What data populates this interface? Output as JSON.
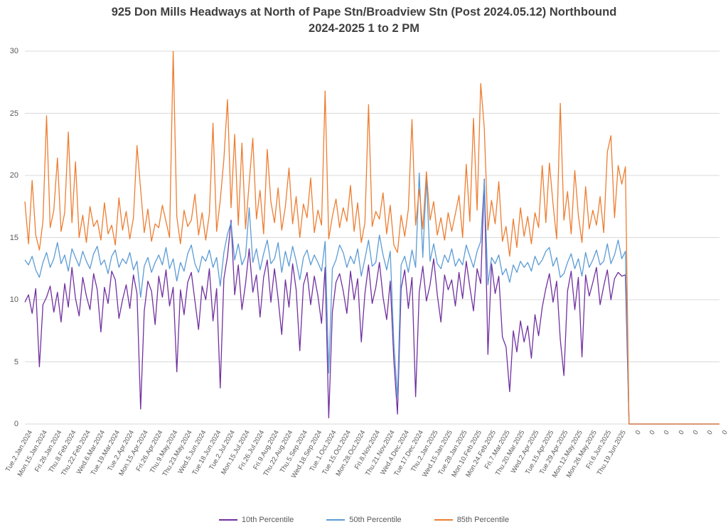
{
  "chart_data": {
    "type": "line",
    "title": "925 Don Mills Headways at North of Pape Stn/Broadview Stn (Post 2024.05.12) Northbound",
    "subtitle": "2024-2025 1 to 2 PM",
    "ylim": [
      0,
      30
    ],
    "yticks": [
      0,
      5,
      10,
      15,
      20,
      25,
      30
    ],
    "grid": "horizontal",
    "legend_position": "bottom",
    "tick_interval": 4,
    "x_tick_labels": [
      "Tue.2.Jan.2024",
      "Mon.15.Jan.2024",
      "Fri.26.Jan.2024",
      "Thu.8.Feb.2024",
      "Thu.22.Feb.2024",
      "Wed.6.Mar.2024",
      "Tue.19.Mar.2024",
      "Tue.2.Apr.2024",
      "Mon.15.Apr.2024",
      "Fri.26.Apr.2024",
      "Thu.9.May.2024",
      "Thu.23.May.2024",
      "Wed.5.Jun.2024",
      "Tue.18.Jun.2024",
      "Tue.2.Jul.2024",
      "Mon.15.Jul.2024",
      "Fri.26.Jul.2024",
      "Fri.9.Aug.2024",
      "Thu.22.Aug.2024",
      "Thu.5.Sep.2024",
      "Wed.18.Sep.2024",
      "Tue.1.Oct.2024",
      "Tue.15.Oct.2024",
      "Mon.28.Oct.2024",
      "Fri.8.Nov.2024",
      "Thu.21.Nov.2024",
      "Wed.4.Dec.2024",
      "Tue.17.Dec.2024",
      "Thu.2.Jan.2025",
      "Wed.15.Jan.2025",
      "Tue.28.Jan.2025",
      "Mon.10.Feb.2025",
      "Mon.24.Feb.2025",
      "Fri.7.Mar.2025",
      "Thu.20.Mar.2025",
      "Wed.2.Apr.2025",
      "Tue.15.Apr.2025",
      "Tue.29.Apr.2025",
      "Mon.12.May.2025",
      "Mon.26.May.2025",
      "Fri.6.Jun.2025",
      "Thu.19.Jun.2025",
      "0",
      "0",
      "0",
      "0",
      "0",
      "0",
      "0"
    ],
    "series": [
      {
        "name": "10th Percentile",
        "color": "#7030A0",
        "values": [
          9.8,
          10.4,
          8.9,
          10.9,
          4.6,
          9.6,
          10.2,
          11.1,
          9.0,
          10.6,
          8.2,
          11.3,
          9.4,
          12.6,
          10.1,
          8.7,
          11.8,
          10.3,
          9.2,
          12.1,
          10.8,
          7.4,
          11.0,
          9.7,
          12.3,
          11.6,
          8.5,
          10.0,
          11.2,
          9.3,
          12.0,
          10.5,
          1.2,
          9.1,
          11.5,
          10.7,
          8.0,
          11.9,
          10.2,
          12.4,
          9.5,
          11.0,
          4.2,
          10.8,
          8.8,
          11.4,
          12.2,
          9.9,
          7.6,
          11.1,
          10.0,
          12.5,
          8.3,
          10.9,
          2.9,
          11.7,
          13.5,
          16.4,
          10.4,
          12.8,
          9.2,
          11.3,
          14.1,
          10.6,
          12.0,
          8.6,
          11.8,
          13.2,
          9.8,
          12.5,
          10.1,
          7.2,
          11.6,
          9.4,
          12.9,
          10.8,
          5.9,
          11.2,
          12.2,
          9.6,
          11.9,
          10.3,
          8.1,
          12.6,
          0.5,
          9.0,
          11.4,
          12.1,
          10.7,
          8.9,
          12.3,
          10.0,
          11.7,
          6.6,
          10.5,
          12.8,
          9.7,
          11.0,
          13.0,
          10.2,
          8.4,
          11.5,
          5.1,
          0.8,
          10.9,
          12.4,
          9.3,
          11.8,
          2.2,
          10.6,
          12.7,
          9.9,
          11.2,
          13.3,
          10.4,
          8.2,
          12.0,
          10.8,
          11.6,
          9.5,
          12.2,
          10.1,
          13.1,
          11.0,
          9.1,
          12.5,
          11.3,
          19.7,
          5.6,
          12.9,
          10.5,
          11.9,
          7.0,
          6.2,
          2.6,
          7.5,
          5.8,
          8.3,
          6.6,
          7.9,
          5.3,
          8.8,
          7.1,
          9.4,
          10.9,
          12.1,
          9.8,
          11.5,
          6.8,
          3.9,
          10.7,
          12.3,
          9.2,
          11.8,
          5.4,
          12.0,
          10.3,
          11.4,
          12.6,
          9.6,
          11.1,
          12.4,
          10.0,
          11.7,
          12.2,
          11.9,
          12.0,
          0,
          0,
          0,
          0,
          0,
          0,
          0,
          0,
          0,
          0,
          0,
          0,
          0,
          0,
          0,
          0,
          0,
          0,
          0,
          0,
          0,
          0,
          0,
          0,
          0,
          0
        ]
      },
      {
        "name": "50th Percentile",
        "color": "#5B9BD5",
        "values": [
          13.2,
          12.8,
          13.5,
          12.4,
          11.8,
          13.0,
          13.8,
          12.6,
          13.3,
          14.6,
          12.9,
          13.6,
          12.3,
          14.1,
          13.4,
          12.7,
          13.9,
          13.1,
          12.5,
          13.7,
          14.3,
          12.8,
          13.2,
          12.1,
          13.5,
          14.0,
          12.6,
          13.3,
          12.9,
          13.8,
          12.4,
          13.1,
          10.2,
          12.7,
          13.4,
          12.2,
          13.0,
          13.6,
          12.8,
          14.2,
          12.5,
          13.3,
          11.5,
          13.0,
          12.3,
          13.7,
          14.4,
          12.9,
          12.2,
          13.5,
          13.1,
          14.0,
          12.6,
          13.4,
          11.1,
          13.8,
          15.3,
          16.2,
          13.2,
          14.5,
          12.8,
          13.5,
          17.4,
          13.0,
          14.1,
          12.4,
          13.7,
          14.8,
          12.9,
          13.3,
          14.6,
          12.2,
          13.9,
          12.7,
          14.3,
          13.1,
          11.6,
          13.4,
          14.0,
          12.8,
          13.6,
          13.0,
          12.3,
          14.7,
          4.1,
          12.5,
          13.2,
          14.4,
          13.8,
          12.6,
          13.5,
          12.9,
          14.1,
          11.9,
          13.3,
          14.8,
          12.7,
          13.0,
          15.2,
          13.6,
          12.4,
          13.9,
          6.5,
          2.1,
          12.8,
          13.5,
          12.2,
          14.0,
          12.6,
          20.2,
          13.4,
          19.8,
          13.1,
          14.5,
          12.9,
          12.5,
          13.6,
          13.0,
          14.1,
          12.7,
          13.3,
          12.8,
          14.4,
          13.5,
          12.6,
          13.9,
          14.7,
          19.6,
          11.2,
          13.4,
          12.9,
          13.6,
          12.0,
          12.5,
          11.4,
          12.8,
          12.2,
          13.1,
          12.6,
          13.0,
          12.3,
          13.5,
          12.8,
          13.2,
          13.9,
          14.2,
          12.7,
          13.4,
          11.8,
          12.1,
          13.0,
          13.7,
          12.5,
          13.3,
          11.9,
          13.8,
          12.6,
          13.2,
          14.0,
          12.8,
          13.1,
          14.5,
          12.9,
          13.6,
          14.8,
          13.3,
          13.9,
          0,
          0,
          0,
          0,
          0,
          0,
          0,
          0,
          0,
          0,
          0,
          0,
          0,
          0,
          0,
          0,
          0,
          0,
          0,
          0,
          0,
          0,
          0,
          0,
          0,
          0
        ]
      },
      {
        "name": "85th Percentile",
        "color": "#ED7D31",
        "values": [
          17.9,
          14.5,
          19.6,
          15.2,
          14.0,
          16.3,
          24.8,
          15.8,
          17.2,
          21.4,
          15.5,
          17.0,
          23.5,
          16.2,
          21.1,
          15.0,
          16.8,
          14.6,
          17.5,
          15.9,
          16.4,
          14.8,
          17.8,
          15.3,
          16.0,
          14.4,
          18.2,
          15.6,
          17.1,
          14.9,
          16.6,
          22.4,
          18.9,
          15.4,
          17.3,
          14.7,
          16.1,
          15.8,
          17.6,
          16.3,
          15.0,
          30.0,
          16.7,
          14.5,
          17.2,
          15.9,
          16.4,
          18.5,
          15.2,
          17.0,
          14.8,
          16.9,
          24.2,
          15.5,
          18.0,
          21.3,
          26.1,
          17.4,
          23.3,
          16.0,
          22.6,
          15.7,
          19.4,
          23.0,
          16.5,
          18.8,
          15.3,
          22.1,
          17.9,
          16.2,
          19.0,
          15.6,
          17.5,
          20.6,
          16.1,
          18.3,
          15.0,
          17.7,
          16.6,
          19.8,
          15.4,
          17.2,
          16.0,
          26.8,
          14.9,
          16.7,
          18.1,
          15.8,
          17.4,
          16.3,
          19.2,
          15.5,
          17.8,
          14.6,
          16.2,
          25.7,
          15.9,
          17.1,
          16.5,
          18.6,
          15.3,
          17.6,
          14.4,
          13.8,
          16.8,
          15.1,
          17.3,
          24.5,
          16.0,
          18.9,
          15.7,
          20.3,
          16.4,
          17.9,
          15.2,
          16.6,
          14.8,
          17.0,
          15.5,
          16.9,
          18.4,
          15.0,
          20.9,
          16.3,
          24.6,
          17.2,
          27.4,
          23.8,
          15.6,
          18.0,
          16.1,
          19.5,
          14.7,
          15.9,
          13.5,
          16.5,
          14.2,
          17.4,
          15.1,
          16.7,
          14.5,
          17.0,
          15.8,
          20.8,
          16.2,
          21.0,
          17.7,
          14.9,
          25.8,
          16.4,
          18.7,
          15.3,
          20.4,
          16.8,
          14.6,
          19.1,
          15.7,
          17.2,
          16.0,
          18.3,
          15.4,
          21.9,
          23.2,
          16.6,
          20.8,
          19.3,
          20.7,
          0,
          0,
          0,
          0,
          0,
          0,
          0,
          0,
          0,
          0,
          0,
          0,
          0,
          0,
          0,
          0,
          0,
          0,
          0,
          0,
          0,
          0,
          0,
          0,
          0,
          0
        ]
      }
    ]
  },
  "colors": {
    "gridline": "#D9D9D9",
    "axis_text": "#595959",
    "title_text": "#404040"
  }
}
